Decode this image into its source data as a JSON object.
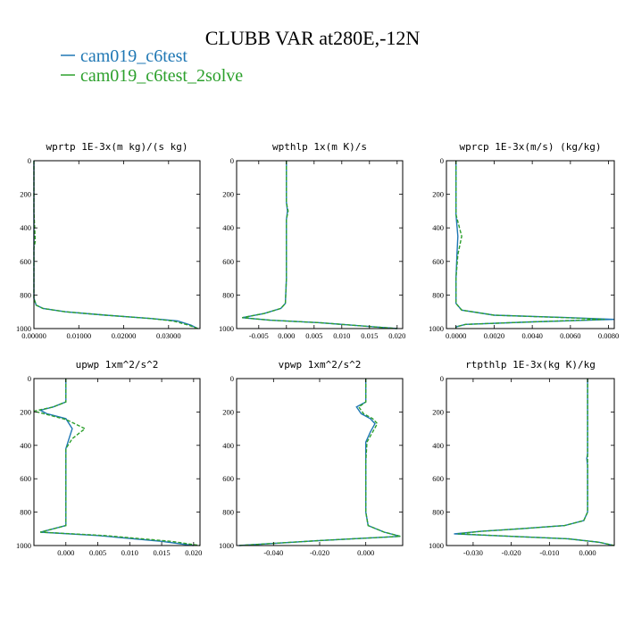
{
  "title": "CLUBB VAR at280E,-12N",
  "legend": [
    {
      "label": "cam019_c6test",
      "color": "#1f77b4"
    },
    {
      "label": "cam019_c6test_2solve",
      "color": "#2ca02c"
    }
  ],
  "chart_data": [
    {
      "type": "line",
      "title": "wprtp  1E-3x(m kg)/(s kg)",
      "xlim": [
        0.0,
        0.037
      ],
      "ylim": [
        1000,
        0
      ],
      "xticks": [
        0.0,
        0.01,
        0.02,
        0.03
      ],
      "xticklabels": [
        "0.00000",
        "0.01000",
        "0.02000",
        "0.03000"
      ],
      "yticks": [
        0,
        200,
        400,
        600,
        800,
        1000
      ],
      "yticklabels": [
        "0",
        "200",
        "400",
        "600",
        "800",
        "1000"
      ],
      "series": [
        {
          "name": "cam019_c6test",
          "x": [
            0.0,
            0.0,
            0.0,
            0.0,
            0.0,
            0.0,
            0.0,
            0.0005,
            0.002,
            0.007,
            0.016,
            0.026,
            0.032,
            0.035,
            0.0365
          ],
          "y": [
            0,
            100,
            300,
            480,
            520,
            700,
            820,
            860,
            880,
            900,
            920,
            940,
            955,
            980,
            1000
          ]
        },
        {
          "name": "cam019_c6test_2solve",
          "x": [
            0.0,
            0.0,
            0.0,
            0.0003,
            0.0,
            0.0,
            0.0,
            0.0005,
            0.002,
            0.007,
            0.016,
            0.026,
            0.031,
            0.0345,
            0.0365
          ],
          "y": [
            0,
            100,
            300,
            480,
            520,
            700,
            820,
            860,
            880,
            900,
            920,
            940,
            955,
            980,
            1000
          ]
        }
      ]
    },
    {
      "type": "line",
      "title": "wpthlp  1x(m K)/s",
      "xlim": [
        -0.009,
        0.021
      ],
      "ylim": [
        1000,
        0
      ],
      "xticks": [
        -0.005,
        0.0,
        0.005,
        0.01,
        0.015,
        0.02
      ],
      "xticklabels": [
        "-0.005",
        "0.000",
        "0.005",
        "0.010",
        "0.015",
        "0.020"
      ],
      "yticks": [
        0,
        200,
        400,
        600,
        800,
        1000
      ],
      "yticklabels": [
        "0",
        "200",
        "400",
        "600",
        "800",
        "1000"
      ],
      "series": [
        {
          "name": "cam019_c6test",
          "x": [
            0.0,
            0.0,
            0.0,
            0.0002,
            0.0,
            0.0,
            0.0,
            -0.0002,
            -0.001,
            -0.004,
            -0.008,
            -0.003,
            0.006,
            0.014,
            0.02
          ],
          "y": [
            0,
            100,
            250,
            300,
            350,
            480,
            700,
            850,
            880,
            910,
            935,
            950,
            965,
            985,
            1000
          ]
        },
        {
          "name": "cam019_c6test_2solve",
          "x": [
            0.0,
            0.0,
            0.0,
            0.0003,
            0.0,
            0.0,
            0.0,
            -0.0002,
            -0.001,
            -0.004,
            -0.008,
            -0.003,
            0.006,
            0.014,
            0.02
          ],
          "y": [
            0,
            100,
            250,
            300,
            350,
            480,
            700,
            850,
            880,
            910,
            935,
            950,
            965,
            985,
            1000
          ]
        }
      ]
    },
    {
      "type": "line",
      "title": "wprcp  1E-3x(m/s) (kg/kg)",
      "xlim": [
        -0.0005,
        0.0083
      ],
      "ylim": [
        1000,
        0
      ],
      "xticks": [
        0.0,
        0.002,
        0.004,
        0.006,
        0.008
      ],
      "xticklabels": [
        "0.0000",
        "0.0020",
        "0.0040",
        "0.0060",
        "0.0080"
      ],
      "yticks": [
        0,
        200,
        400,
        600,
        800,
        1000
      ],
      "yticklabels": [
        "0",
        "200",
        "400",
        "600",
        "800",
        "1000"
      ],
      "series": [
        {
          "name": "cam019_c6test",
          "x": [
            0.0,
            0.0,
            0.0,
            0.0001,
            5e-05,
            0.0,
            0.0,
            0.0003,
            0.002,
            0.006,
            0.0083,
            0.004,
            0.0005,
            0.0,
            0.0
          ],
          "y": [
            0,
            200,
            320,
            450,
            560,
            700,
            850,
            890,
            920,
            935,
            945,
            960,
            975,
            990,
            1000
          ]
        },
        {
          "name": "cam019_c6test_2solve",
          "x": [
            0.0,
            0.0,
            0.0,
            0.0003,
            0.0001,
            0.0,
            0.0,
            0.0003,
            0.002,
            0.0058,
            0.0078,
            0.004,
            0.0005,
            0.0,
            0.0
          ],
          "y": [
            0,
            200,
            320,
            450,
            560,
            700,
            850,
            890,
            920,
            935,
            945,
            960,
            975,
            990,
            1000
          ]
        }
      ]
    },
    {
      "type": "line",
      "title": "upwp  1xm^2/s^2",
      "xlim": [
        -0.005,
        0.021
      ],
      "ylim": [
        1000,
        0
      ],
      "xticks": [
        0.0,
        0.005,
        0.01,
        0.015,
        0.02
      ],
      "xticklabels": [
        "0.000",
        "0.005",
        "0.010",
        "0.015",
        "0.020"
      ],
      "yticks": [
        0,
        200,
        400,
        600,
        800,
        1000
      ],
      "yticklabels": [
        "0",
        "200",
        "400",
        "600",
        "800",
        "1000"
      ],
      "series": [
        {
          "name": "cam019_c6test",
          "x": [
            0.0,
            0.0,
            -0.002,
            -0.004,
            -0.003,
            0.0,
            0.001,
            0.0005,
            0.0,
            0.0,
            0.0,
            -0.004,
            0.005,
            0.015,
            0.02
          ],
          "y": [
            0,
            140,
            170,
            190,
            210,
            240,
            300,
            360,
            420,
            600,
            880,
            920,
            940,
            975,
            1000
          ]
        },
        {
          "name": "cam019_c6test_2solve",
          "x": [
            0.0,
            0.0,
            -0.002,
            -0.005,
            -0.003,
            0.0,
            0.003,
            0.001,
            0.0,
            0.0,
            0.0,
            -0.004,
            0.006,
            0.0165,
            0.021
          ],
          "y": [
            0,
            140,
            170,
            195,
            215,
            245,
            300,
            360,
            420,
            600,
            880,
            920,
            940,
            975,
            1000
          ]
        }
      ]
    },
    {
      "type": "line",
      "title": "vpwp  1xm^2/s^2",
      "xlim": [
        -0.056,
        0.016
      ],
      "ylim": [
        1000,
        0
      ],
      "xticks": [
        -0.04,
        -0.02,
        0.0
      ],
      "xticklabels": [
        "-0.040",
        "-0.020",
        "0.000"
      ],
      "yticks": [
        0,
        200,
        400,
        600,
        800,
        1000
      ],
      "yticklabels": [
        "0",
        "200",
        "400",
        "600",
        "800",
        "1000"
      ],
      "series": [
        {
          "name": "cam019_c6test",
          "x": [
            0.0,
            0.0,
            -0.004,
            -0.002,
            0.002,
            0.004,
            0.002,
            0.0,
            0.0,
            0.0,
            0.001,
            0.008,
            0.015,
            -0.02,
            -0.055
          ],
          "y": [
            0,
            140,
            170,
            210,
            240,
            270,
            320,
            380,
            500,
            800,
            880,
            920,
            945,
            970,
            1000
          ]
        },
        {
          "name": "cam019_c6test_2solve",
          "x": [
            0.0,
            0.0,
            -0.003,
            -0.001,
            0.003,
            0.005,
            0.003,
            0.0005,
            0.0,
            0.0,
            0.001,
            0.008,
            0.015,
            -0.02,
            -0.055
          ],
          "y": [
            0,
            140,
            170,
            210,
            240,
            270,
            320,
            380,
            500,
            800,
            880,
            920,
            945,
            970,
            1000
          ]
        }
      ]
    },
    {
      "type": "line",
      "title": "rtpthlp  1E-3x(kg K)/kg",
      "xlim": [
        -0.037,
        0.007
      ],
      "ylim": [
        1000,
        0
      ],
      "xticks": [
        -0.03,
        -0.02,
        -0.01,
        0.0
      ],
      "xticklabels": [
        "-0.030",
        "-0.020",
        "-0.010",
        "0.000"
      ],
      "yticks": [
        0,
        200,
        400,
        600,
        800,
        1000
      ],
      "yticklabels": [
        "0",
        "200",
        "400",
        "600",
        "800",
        "1000"
      ],
      "series": [
        {
          "name": "cam019_c6test",
          "x": [
            0.0,
            0.0,
            0.0,
            -0.0002,
            0.0,
            0.0,
            -0.001,
            -0.006,
            -0.018,
            -0.028,
            -0.035,
            -0.02,
            -0.005,
            0.003,
            0.007
          ],
          "y": [
            0,
            200,
            450,
            480,
            520,
            800,
            850,
            880,
            900,
            915,
            930,
            945,
            960,
            980,
            1000
          ]
        },
        {
          "name": "cam019_c6test_2solve",
          "x": [
            0.0,
            0.0,
            0.0,
            0.0,
            0.0,
            0.0,
            -0.001,
            -0.006,
            -0.018,
            -0.028,
            -0.034,
            -0.02,
            -0.005,
            0.003,
            0.007
          ],
          "y": [
            0,
            200,
            450,
            480,
            520,
            800,
            850,
            880,
            900,
            915,
            930,
            945,
            960,
            980,
            1000
          ]
        }
      ]
    }
  ]
}
